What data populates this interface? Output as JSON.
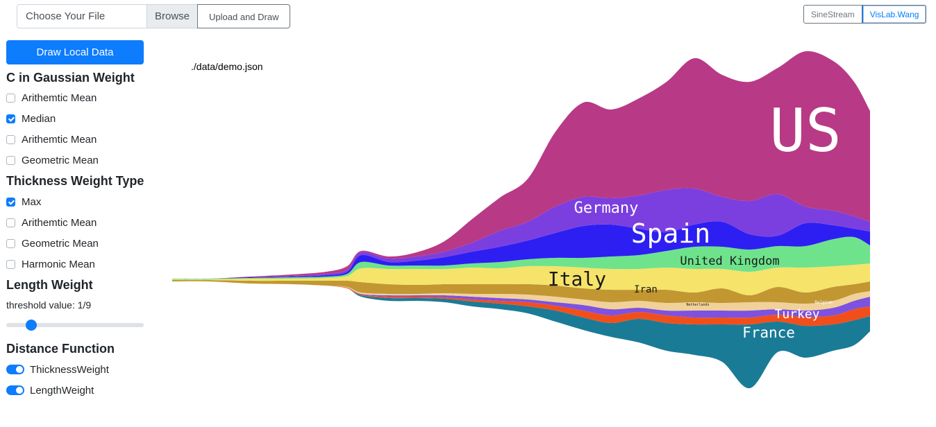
{
  "file_input": {
    "placeholder": "Choose Your File",
    "browse_label": "Browse"
  },
  "upload_button": "Upload and Draw",
  "nav": {
    "sinestream": "SineStream",
    "vislab": "VisLab.Wang"
  },
  "draw_local_button": "Draw Local Data",
  "gaussian": {
    "title": "C in Gaussian Weight",
    "options": [
      {
        "label": "Arithemtic Mean",
        "checked": false
      },
      {
        "label": "Median",
        "checked": true
      },
      {
        "label": "Arithemtic Mean",
        "checked": false
      },
      {
        "label": "Geometric Mean",
        "checked": false
      }
    ]
  },
  "thickness": {
    "title": "Thickness Weight Type",
    "options": [
      {
        "label": "Max",
        "checked": true
      },
      {
        "label": "Arithemtic Mean",
        "checked": false
      },
      {
        "label": "Geometric Mean",
        "checked": false
      },
      {
        "label": "Harmonic Mean",
        "checked": false
      }
    ]
  },
  "length": {
    "title": "Length Weight",
    "threshold_label": "threshold value: 1/9",
    "slider_value": 0.2
  },
  "distance": {
    "title": "Distance Function",
    "toggles": [
      {
        "label": "ThicknessWeight",
        "on": true
      },
      {
        "label": "LengthWeight",
        "on": true
      }
    ]
  },
  "data_path": "./data/demo.json",
  "chart_data": {
    "type": "area",
    "title": "",
    "series": [
      {
        "name": "France",
        "color": "#1a7b96"
      },
      {
        "name": "Turkey",
        "color": "#f04f1c"
      },
      {
        "name": "Belgium",
        "color": "#7d52e0"
      },
      {
        "name": "Netherlands",
        "color": "#f1d19a"
      },
      {
        "name": "Iran",
        "color": "#c29731"
      },
      {
        "name": "Italy",
        "color": "#f5e36a"
      },
      {
        "name": "United Kingdom",
        "color": "#6ee38c"
      },
      {
        "name": "Spain",
        "color": "#2d1ff2"
      },
      {
        "name": "Germany",
        "color": "#7b3fe0"
      },
      {
        "name": "US",
        "color": "#b83a86"
      }
    ]
  }
}
